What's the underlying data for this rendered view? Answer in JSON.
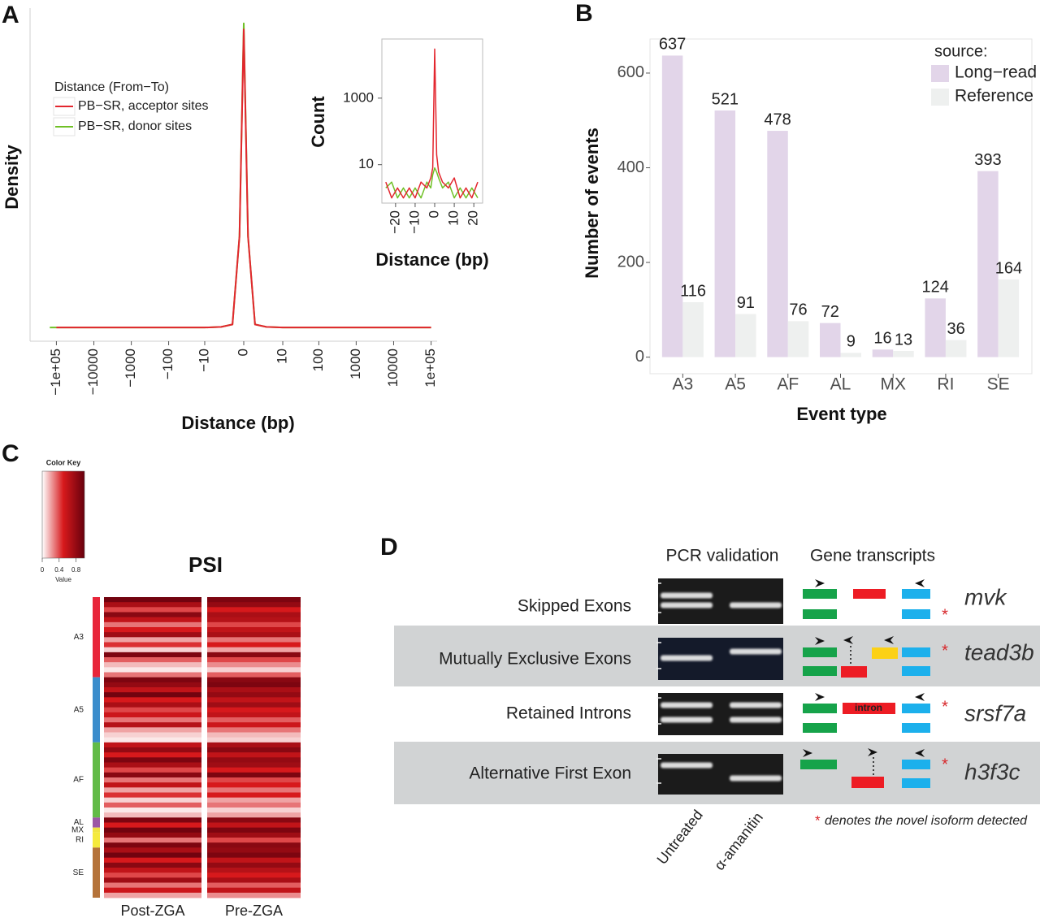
{
  "chart_data": [
    {
      "panel": "A",
      "type": "line",
      "xscale": "symlog",
      "x": [
        -150000,
        -100000,
        -1000,
        -10,
        -3,
        -1,
        -0.3,
        0,
        0.3,
        1,
        3,
        10,
        1000,
        100000
      ],
      "series": [
        {
          "name": "PB−SR, acceptor sites",
          "color": "#e3262e",
          "values": [
            null,
            0,
            0,
            0,
            0.002,
            0.01,
            0.3,
            0.98,
            0.3,
            0.01,
            0.002,
            0,
            0,
            0
          ]
        },
        {
          "name": "PB−SR, donor sites",
          "color": "#6fc026",
          "values": [
            0,
            0,
            0,
            0,
            0.002,
            0.01,
            0.3,
            1.0,
            0.3,
            0.01,
            0.002,
            0,
            0,
            0
          ]
        }
      ],
      "legend_title": "Distance (From−To)",
      "ylabel": "Density",
      "xlabel": "Distance (bp)",
      "xlim": [
        -160000,
        160000
      ],
      "ylim": [
        -0.045,
        1.05
      ],
      "xticks": [
        {
          "value": -100000,
          "label": "−1e+05"
        },
        {
          "value": -10000,
          "label": "−10000"
        },
        {
          "value": -1000,
          "label": "−1000"
        },
        {
          "value": -100,
          "label": "−100"
        },
        {
          "value": -10,
          "label": "−10"
        },
        0,
        10,
        100,
        1000,
        10000,
        {
          "value": 100000,
          "label": "1e+05"
        }
      ]
    },
    {
      "type": "line",
      "ylog": true,
      "x": [
        -25,
        -22,
        -19,
        -16,
        -13,
        -10,
        -7,
        -4,
        -2,
        -1,
        0,
        1,
        2,
        4,
        7,
        10,
        13,
        16,
        19,
        22
      ],
      "series": [
        {
          "name": "PB−SR, acceptor sites",
          "color": "#e3262e",
          "values": [
            3,
            1,
            2,
            1,
            2,
            1,
            3,
            2,
            4,
            8,
            30000,
            20,
            6,
            3,
            2,
            4,
            1,
            2,
            1,
            3
          ]
        },
        {
          "name": "PB−SR, donor sites",
          "color": "#6fc026",
          "values": [
            2,
            3,
            1,
            2,
            1,
            2,
            1,
            3,
            2,
            5,
            8,
            6,
            4,
            2,
            3,
            1,
            2,
            1,
            2,
            1
          ]
        }
      ],
      "ylabel": "Count",
      "xlabel": "Distance (bp)",
      "xlim": [
        -27,
        24.5
      ],
      "ylim": [
        0.7,
        60000
      ],
      "xticks": [
        {
          "value": -20,
          "label": "−20"
        },
        {
          "value": -10,
          "label": "−10"
        },
        0,
        10,
        20
      ],
      "yticks": [
        10,
        1000
      ]
    },
    {
      "panel": "B",
      "type": "bar",
      "categories": [
        "A3",
        "A5",
        "AF",
        "AL",
        "MX",
        "RI",
        "SE"
      ],
      "series": [
        {
          "name": "Long−read",
          "color": "#e2d5e9",
          "values": [
            637,
            521,
            478,
            72,
            16,
            124,
            393
          ]
        },
        {
          "name": "Reference",
          "color": "#eef0ef",
          "values": [
            116,
            91,
            76,
            9,
            13,
            36,
            164
          ]
        }
      ],
      "legend_title": "source:",
      "ylabel": "Number of events",
      "xlabel": "Event type",
      "ylim": [
        -35,
        672
      ],
      "yticks": [
        0,
        200,
        400,
        600
      ],
      "grid": false
    },
    {
      "panel": "C",
      "type": "heatmap",
      "title": "PSI",
      "key_title": "Color Key",
      "key_label": "Value",
      "vlim": [
        0,
        1
      ],
      "key_ticks": [
        0,
        0.4,
        0.8
      ],
      "colors": [
        "#ffffff",
        "#d7191c",
        "#67000d"
      ],
      "row_groups": [
        {
          "name": "A3",
          "color": "#e8253a",
          "count": 16
        },
        {
          "name": "A5",
          "color": "#3b8dcc",
          "count": 13
        },
        {
          "name": "AF",
          "color": "#62bb47",
          "count": 15
        },
        {
          "name": "AL",
          "color": "#9c58a5",
          "count": 2
        },
        {
          "name": "MX",
          "color": "#f0e442",
          "count": 1
        },
        {
          "name": "RI",
          "color": "#f5ea3d",
          "count": 3
        },
        {
          "name": "SE",
          "color": "#b5733a",
          "count": 10
        }
      ],
      "series": [
        {
          "name": "Post-ZGA",
          "values": [
            0.95,
            0.7,
            0.4,
            0.85,
            0.6,
            0.3,
            0.5,
            0.75,
            0.2,
            0.45,
            0.1,
            0.9,
            0.35,
            0.15,
            0.05,
            0.3,
            0.9,
            0.8,
            0.6,
            0.95,
            0.5,
            0.7,
            0.4,
            0.55,
            0.3,
            0.65,
            0.2,
            0.1,
            0.05,
            0.6,
            0.8,
            0.5,
            0.9,
            0.7,
            0.4,
            0.85,
            0.3,
            0.6,
            0.2,
            0.45,
            0.1,
            0.35,
            0.05,
            0.15,
            0.9,
            0.5,
            0.95,
            0.8,
            0.3,
            0.9,
            0.7,
            0.95,
            0.5,
            0.85,
            0.6,
            0.4,
            0.75,
            0.3,
            0.55,
            0.2
          ]
        },
        {
          "name": "Pre-ZGA",
          "values": [
            0.9,
            0.8,
            0.5,
            0.7,
            0.65,
            0.4,
            0.6,
            0.7,
            0.3,
            0.5,
            0.2,
            0.85,
            0.4,
            0.25,
            0.1,
            0.35,
            0.85,
            0.9,
            0.7,
            0.8,
            0.6,
            0.75,
            0.5,
            0.6,
            0.35,
            0.55,
            0.3,
            0.15,
            0.1,
            0.7,
            0.85,
            0.6,
            0.8,
            0.75,
            0.5,
            0.9,
            0.4,
            0.5,
            0.3,
            0.5,
            0.2,
            0.3,
            0.1,
            0.2,
            0.85,
            0.6,
            0.9,
            0.75,
            0.4,
            0.85,
            0.8,
            0.9,
            0.6,
            0.8,
            0.65,
            0.5,
            0.7,
            0.35,
            0.6,
            0.25
          ]
        }
      ]
    }
  ],
  "pcr_diagram": {
    "panel": "D",
    "headers": [
      "PCR validation",
      "Gene transcripts"
    ],
    "rows": [
      {
        "label": "Skipped Exons",
        "gene": "mvk",
        "star": "*"
      },
      {
        "label": "Mutually Exclusive Exons",
        "gene": "tead3b",
        "star": "*"
      },
      {
        "label": "Retained Introns",
        "gene": "srsf7a",
        "star": "*"
      },
      {
        "label": "Alternative First Exon",
        "gene": "h3f3c",
        "star": "*"
      }
    ],
    "intron_label": "intron",
    "lanes": [
      "Untreated",
      "α-amanitin"
    ],
    "footnote": {
      "star": "*",
      "text": "denotes the novel isoform detected"
    }
  }
}
